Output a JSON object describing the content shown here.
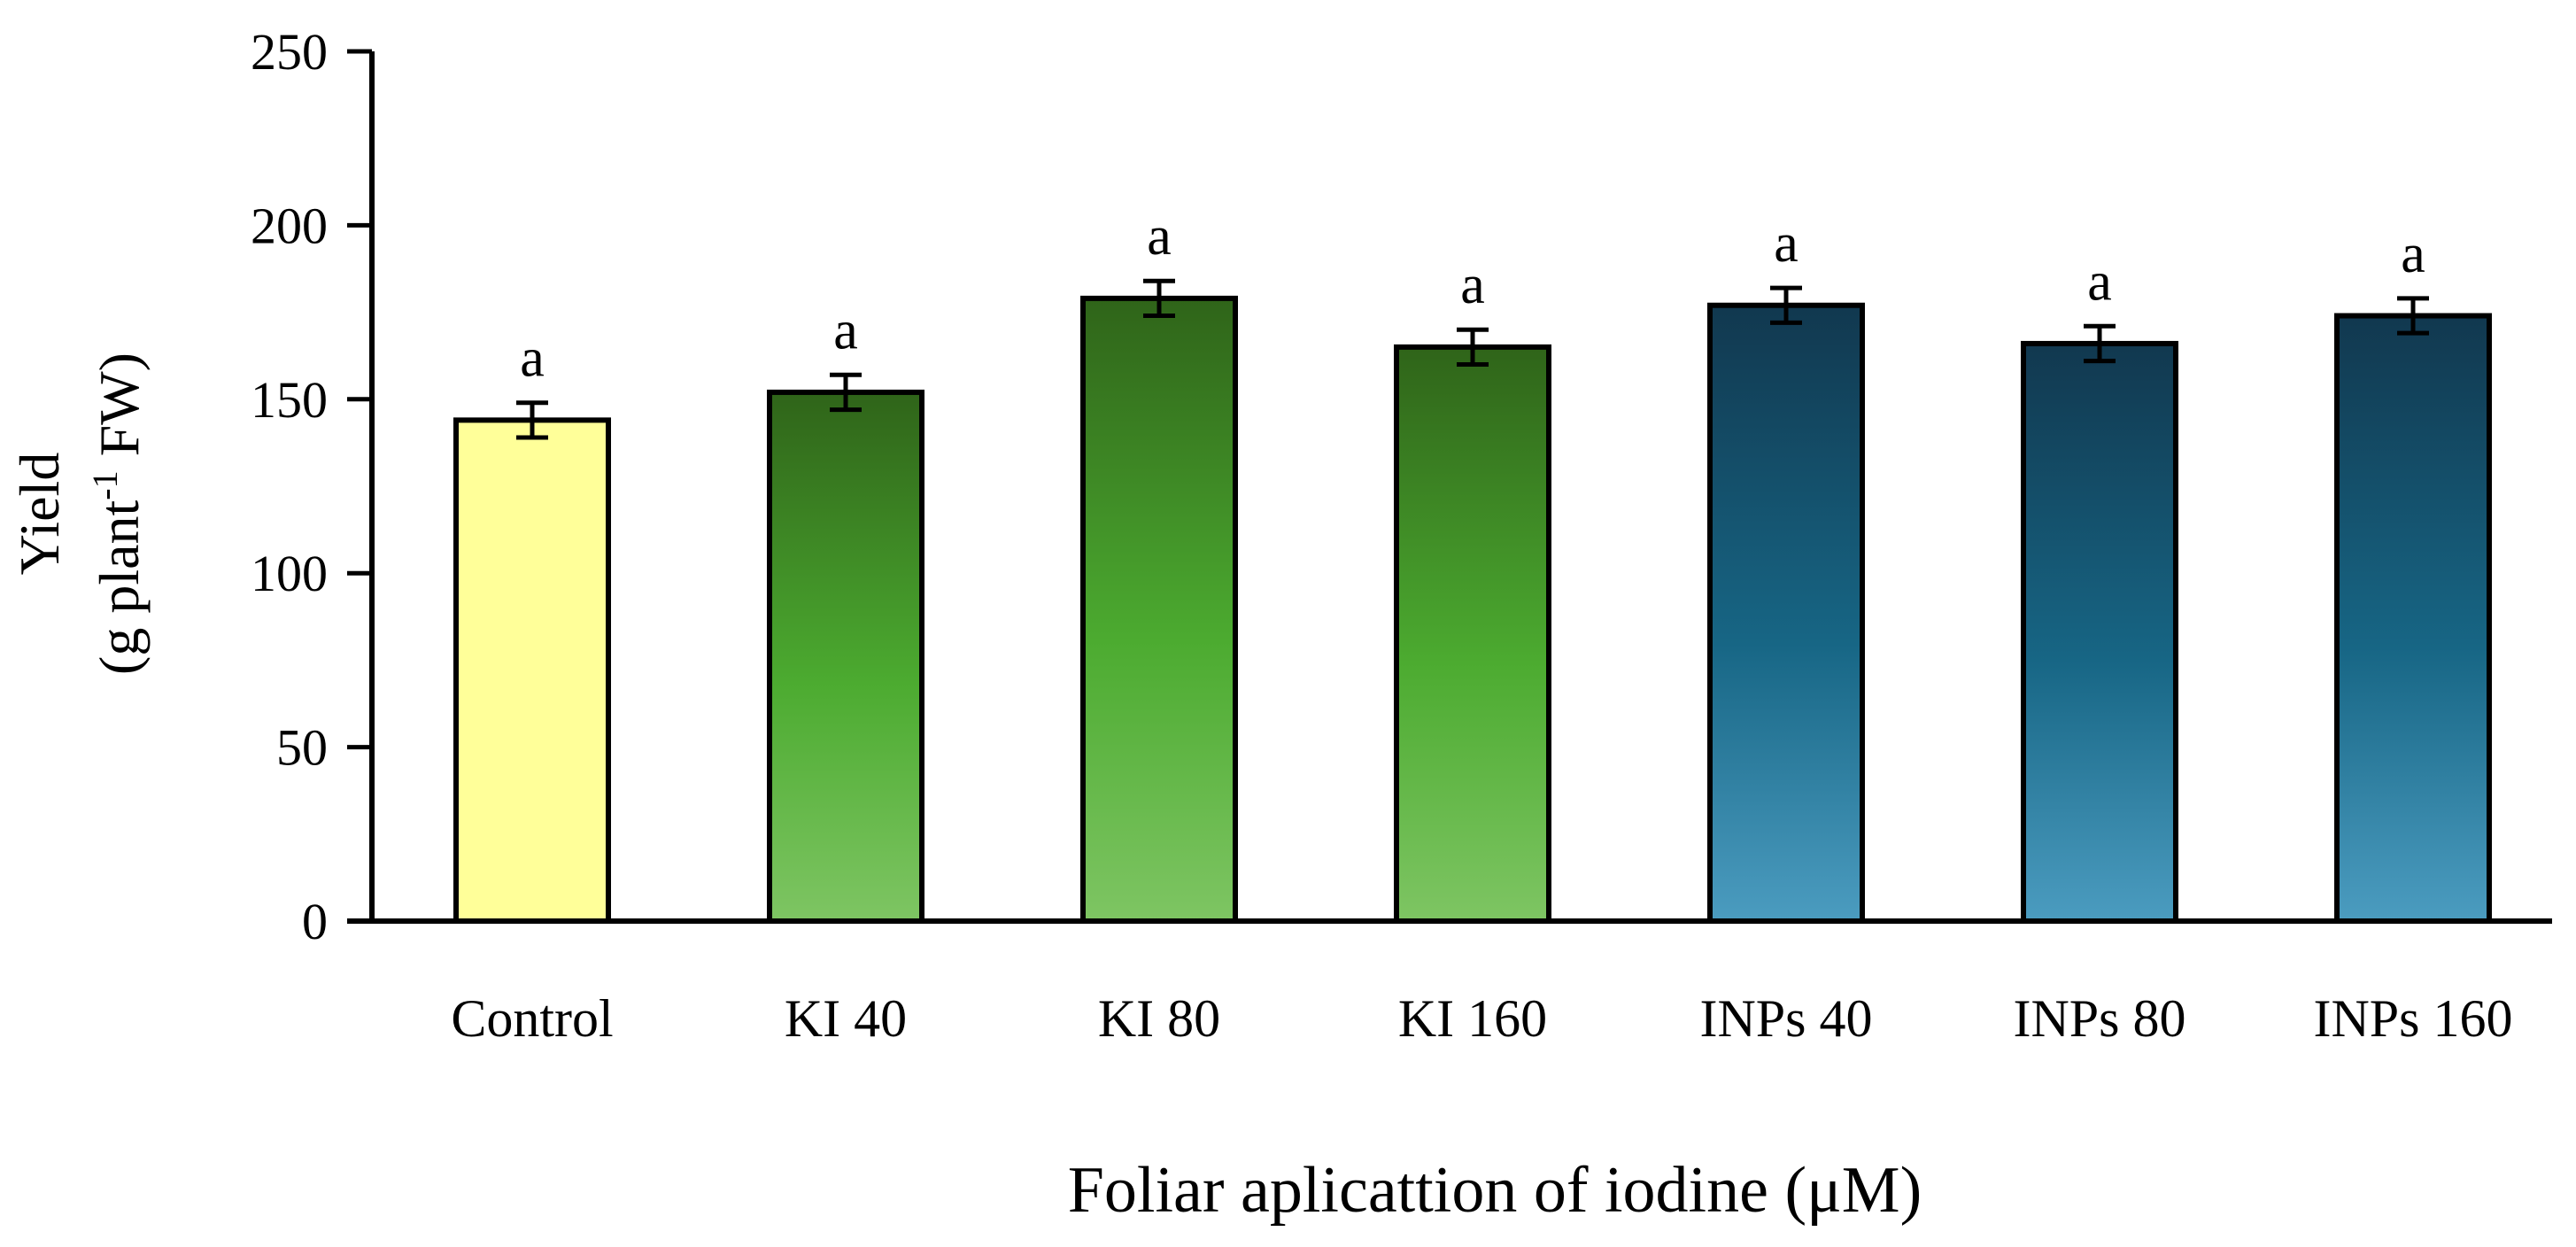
{
  "chart_data": {
    "type": "bar",
    "xlabel": "Foliar aplicattion of iodine (μM)",
    "ylabel": {
      "line1": "Yield",
      "line2_prefix": "(g plant",
      "line2_sup": "-1",
      "line2_suffix": " FW)"
    },
    "ylim": [
      0,
      250
    ],
    "yticks": [
      "0",
      "50",
      "100",
      "150",
      "200",
      "250"
    ],
    "grid": false,
    "categories": [
      "Control",
      "KI 40",
      "KI 80",
      "KI 160",
      "INPs 40",
      "INPs 80",
      "INPs 160"
    ],
    "values": [
      144,
      152,
      179,
      165,
      177,
      166,
      174
    ],
    "errors": [
      5,
      5,
      5,
      5,
      5,
      5,
      5
    ],
    "significance": [
      "a",
      "a",
      "a",
      "a",
      "a",
      "a",
      "a"
    ],
    "bar_colors": {
      "Control": "#ffff99",
      "KI": [
        "#2f6419",
        "#4cab30",
        "#7ec563"
      ],
      "INPs": [
        "#11384f",
        "#176685",
        "#4b9cc0"
      ]
    },
    "bar_groups": [
      "Control",
      "KI",
      "KI",
      "KI",
      "INPs",
      "INPs",
      "INPs"
    ]
  }
}
